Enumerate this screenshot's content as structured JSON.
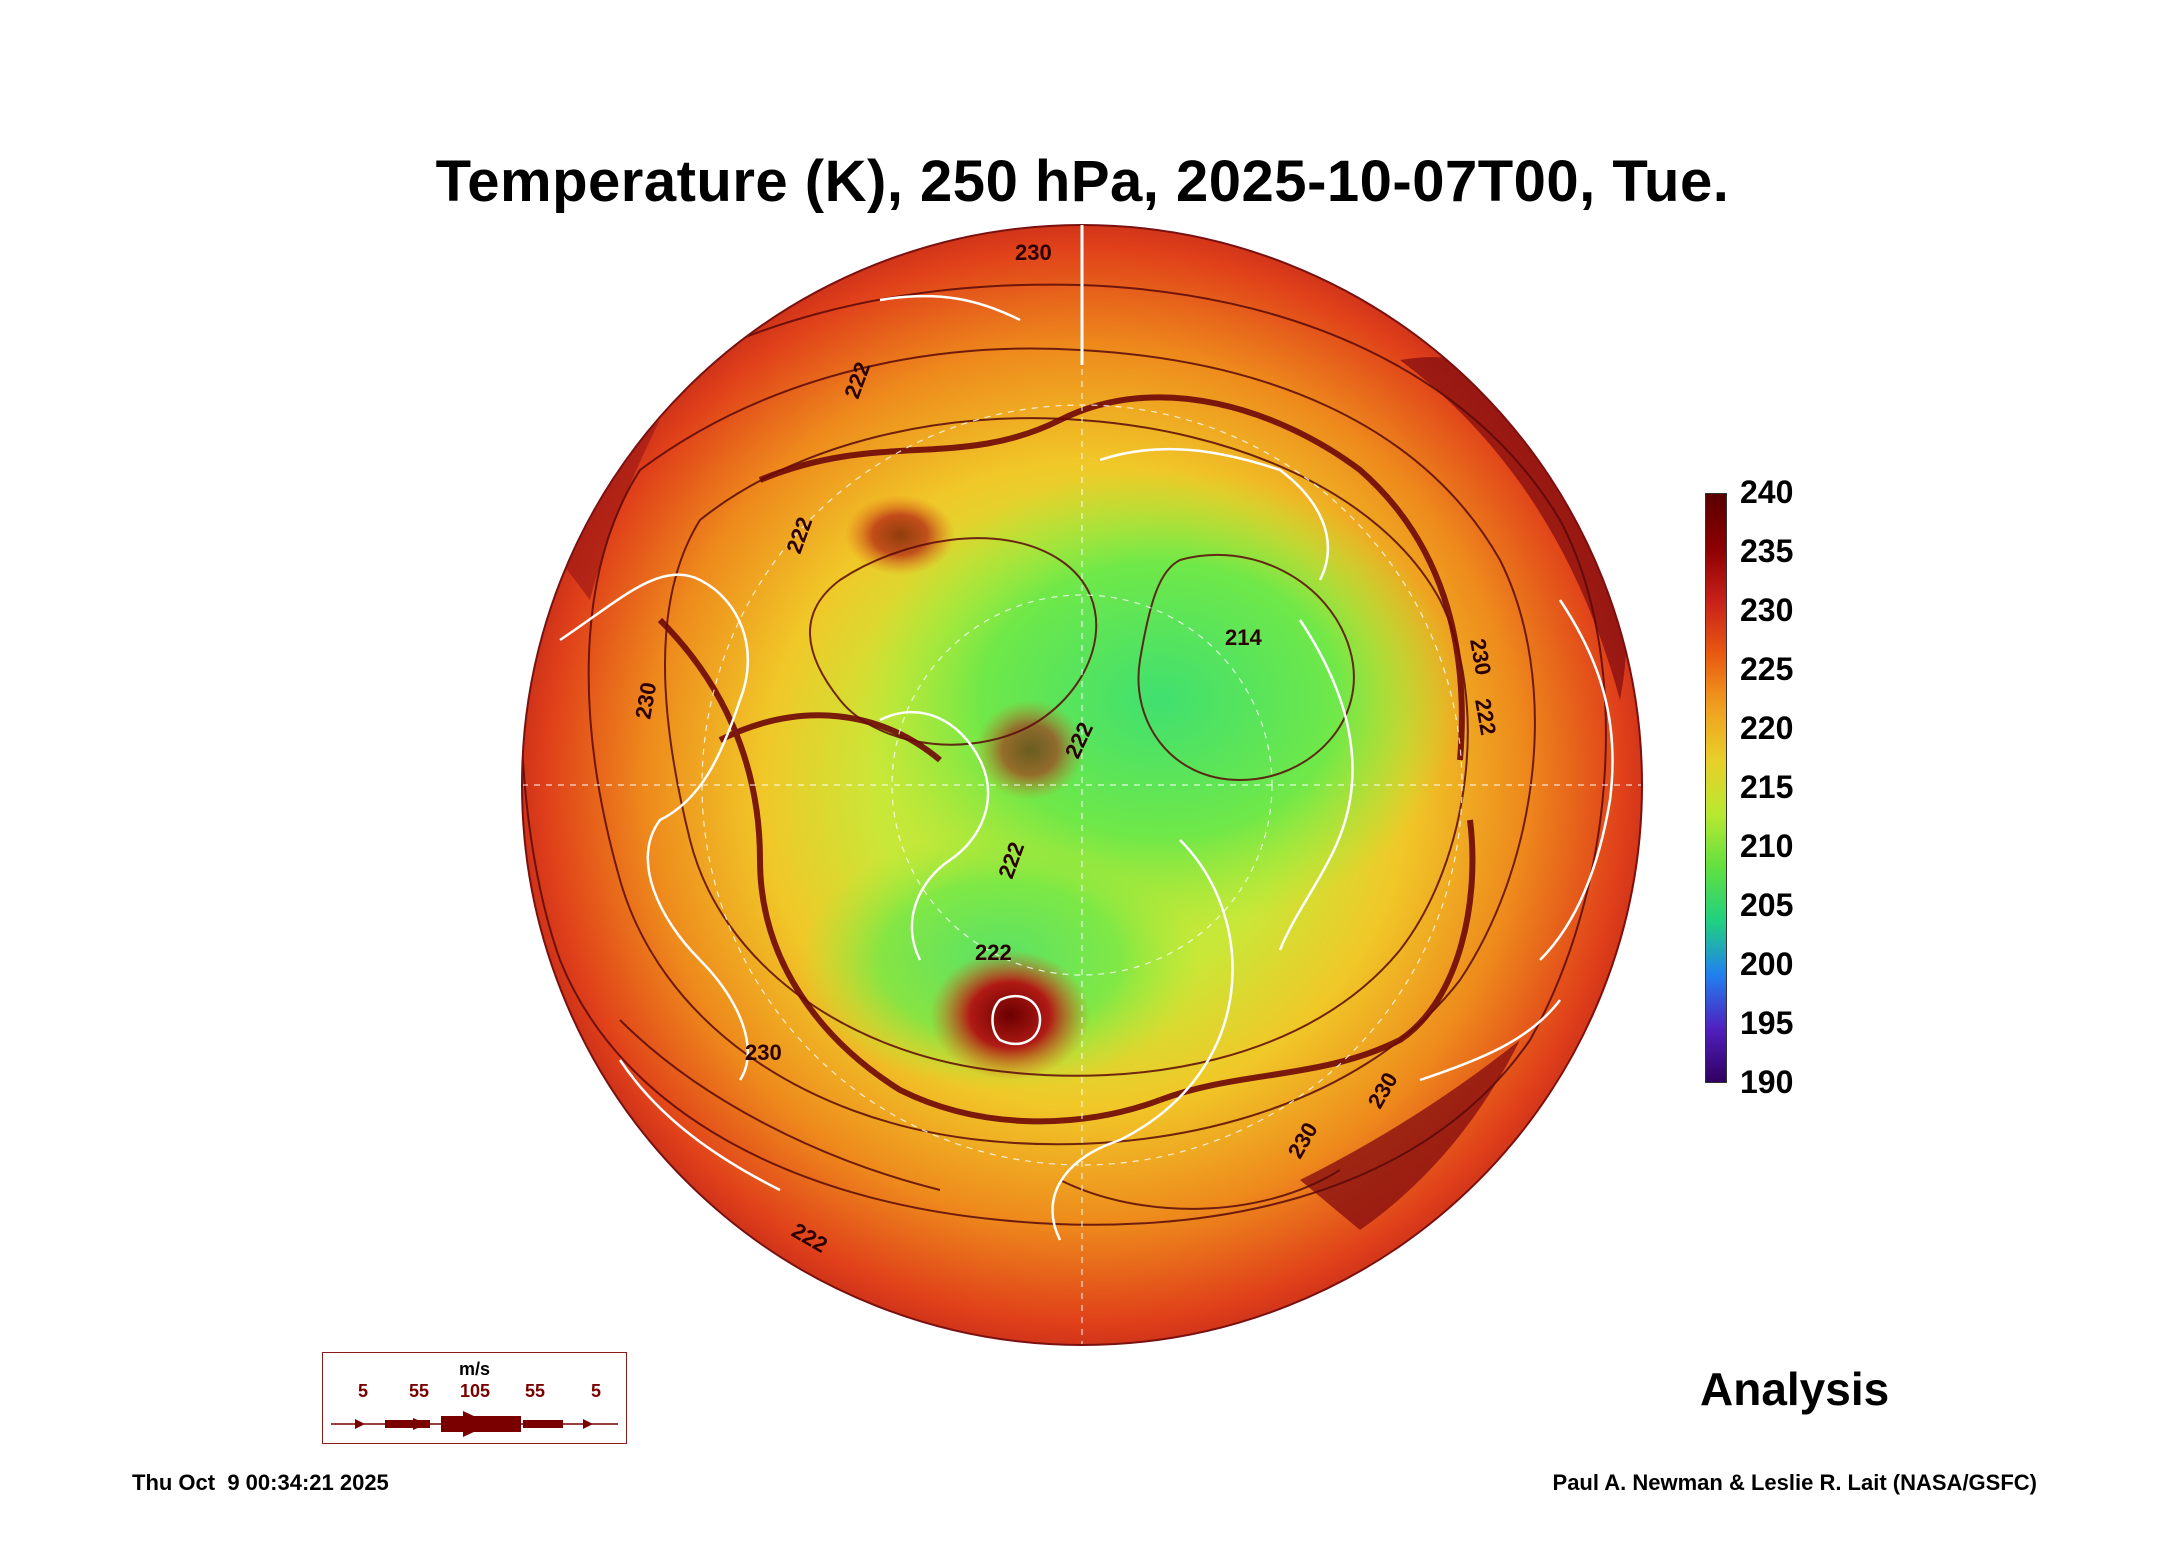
{
  "title": "Temperature (K), 250 hPa, 2025-10-07T00, Tue.",
  "colorbar": {
    "ticks": [
      "240",
      "235",
      "230",
      "225",
      "220",
      "215",
      "210",
      "205",
      "200",
      "195",
      "190"
    ],
    "colors": [
      "#5a0000",
      "#8b0000",
      "#c8201a",
      "#e85a10",
      "#f0a020",
      "#e8d02a",
      "#b8e830",
      "#60e040",
      "#20d080",
      "#2080f0",
      "#5020c0",
      "#300060"
    ]
  },
  "contour_labels": [
    "230",
    "222",
    "222",
    "230",
    "214",
    "222",
    "230",
    "222",
    "222",
    "222",
    "230",
    "222",
    "230",
    "230"
  ],
  "wind_legend": {
    "unit": "m/s",
    "labels": [
      "5",
      "55",
      "105",
      "55",
      "5"
    ]
  },
  "badge": "Analysis",
  "footer": {
    "timestamp": "Thu Oct  9 00:34:21 2025",
    "credit": "Paul A. Newman & Leslie R. Lait (NASA/GSFC)"
  }
}
